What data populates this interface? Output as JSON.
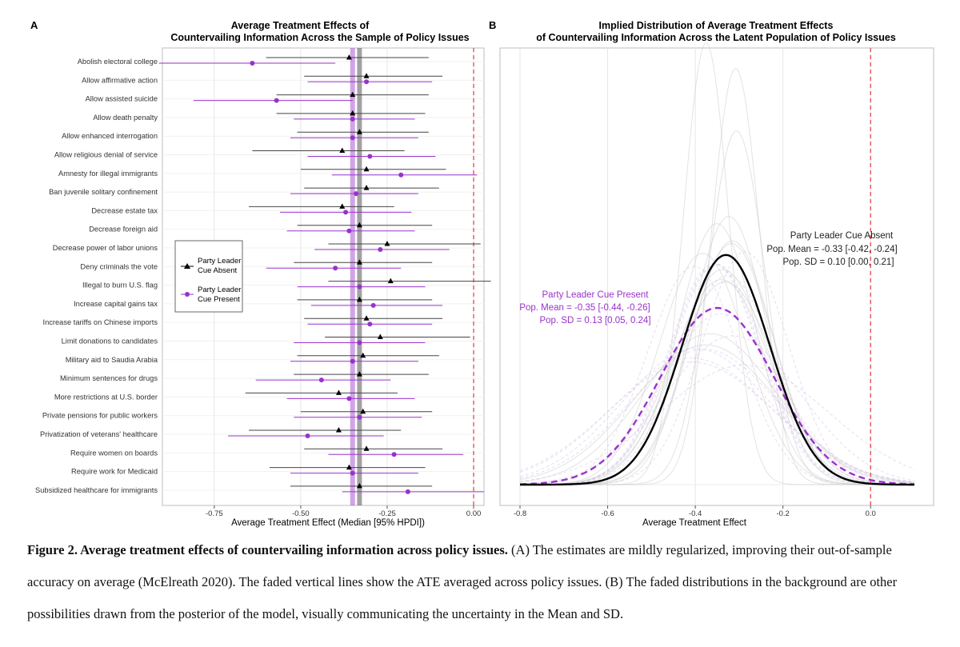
{
  "panel_a": {
    "panel_label": "A",
    "title_line1": "Average Treatment Effects of",
    "title_line2": "Countervailing Information Across the Sample of Policy Issues",
    "xlabel": "Average Treatment Effect (Median [95% HPDI])",
    "legend": {
      "absent_line1": "Party Leader",
      "absent_line2": "Cue Absent",
      "present_line1": "Party Leader",
      "present_line2": "Cue Present"
    }
  },
  "panel_b": {
    "panel_label": "B",
    "title_line1": "Implied Distribution of Average Treatment Effects",
    "title_line2": "of Countervailing Information Across the Latent Population of Policy Issues",
    "xlabel": "Average Treatment Effect",
    "absent_annot": {
      "line1": "Party Leader Cue Absent",
      "line2": "Pop. Mean = -0.33 [-0.42, -0.24]",
      "line3": "Pop. SD = 0.10 [0.00, 0.21]"
    },
    "present_annot": {
      "line1": "Party Leader Cue Present",
      "line2": "Pop. Mean = -0.35 [-0.44, -0.26]",
      "line3": "Pop. SD = 0.13 [0.05, 0.24]"
    }
  },
  "colors": {
    "absent": "#000000",
    "present": "#9932cc",
    "reference": "#e8474a",
    "grid": "#e6e6e6"
  },
  "chart_data": [
    {
      "type": "scatter",
      "subtype": "dot-and-whisker",
      "title": "Average Treatment Effects of Countervailing Information Across the Sample of Policy Issues",
      "xlabel": "Average Treatment Effect (Median [95% HPDI])",
      "xlim": [
        -0.9,
        0.03
      ],
      "x_ticks": [
        -0.75,
        -0.5,
        -0.25,
        0.0
      ],
      "x_tick_labels": [
        "-0.75",
        "-0.50",
        "-0.25",
        "0.00"
      ],
      "reference_line": 0.0,
      "mean_lines": {
        "absent": -0.33,
        "present": -0.35
      },
      "categories": [
        "Abolish electoral college",
        "Allow affirmative action",
        "Allow assisted suicide",
        "Allow death penalty",
        "Allow enhanced interrogation",
        "Allow religious denial of service",
        "Amnesty for illegal immigrants",
        "Ban juvenile solitary confinement",
        "Decrease estate tax",
        "Decrease foreign aid",
        "Decrease power of labor unions",
        "Deny criminals the vote",
        "Illegal to burn U.S. flag",
        "Increase capital gains tax",
        "Increase tariffs on Chinese imports",
        "Limit donations to candidates",
        "Military aid to Saudia Arabia",
        "Minimum sentences for drugs",
        "More restrictions at U.S. border",
        "Private pensions for public workers",
        "Privatization of veterans' healthcare",
        "Require women on boards",
        "Require work for Medicaid",
        "Subsidized healthcare for immigrants"
      ],
      "series": [
        {
          "name": "Party Leader Cue Absent",
          "marker": "triangle",
          "median": [
            -0.36,
            -0.31,
            -0.35,
            -0.35,
            -0.33,
            -0.38,
            -0.31,
            -0.31,
            -0.38,
            -0.33,
            -0.25,
            -0.33,
            -0.24,
            -0.33,
            -0.31,
            -0.27,
            -0.32,
            -0.33,
            -0.39,
            -0.32,
            -0.39,
            -0.31,
            -0.36,
            -0.33
          ],
          "lower": [
            -0.6,
            -0.49,
            -0.57,
            -0.57,
            -0.51,
            -0.64,
            -0.5,
            -0.49,
            -0.65,
            -0.51,
            -0.42,
            -0.52,
            -0.42,
            -0.51,
            -0.49,
            -0.43,
            -0.51,
            -0.52,
            -0.66,
            -0.5,
            -0.65,
            -0.49,
            -0.59,
            -0.53
          ],
          "upper": [
            -0.13,
            -0.09,
            -0.13,
            -0.14,
            -0.13,
            -0.2,
            -0.08,
            -0.1,
            -0.23,
            -0.12,
            0.02,
            -0.12,
            0.05,
            -0.12,
            -0.09,
            -0.01,
            -0.1,
            -0.13,
            -0.22,
            -0.12,
            -0.21,
            -0.09,
            -0.14,
            -0.12
          ]
        },
        {
          "name": "Party Leader Cue Present",
          "marker": "circle",
          "median": [
            -0.64,
            -0.31,
            -0.57,
            -0.35,
            -0.35,
            -0.3,
            -0.21,
            -0.34,
            -0.37,
            -0.36,
            -0.27,
            -0.4,
            -0.33,
            -0.29,
            -0.3,
            -0.33,
            -0.35,
            -0.44,
            -0.36,
            -0.33,
            -0.48,
            -0.23,
            -0.35,
            -0.19
          ],
          "lower": [
            -0.91,
            -0.48,
            -0.81,
            -0.52,
            -0.53,
            -0.48,
            -0.41,
            -0.53,
            -0.56,
            -0.54,
            -0.46,
            -0.6,
            -0.51,
            -0.47,
            -0.48,
            -0.52,
            -0.53,
            -0.63,
            -0.54,
            -0.52,
            -0.71,
            -0.42,
            -0.53,
            -0.38
          ],
          "upper": [
            -0.4,
            -0.12,
            -0.35,
            -0.17,
            -0.16,
            -0.11,
            0.01,
            -0.16,
            -0.18,
            -0.17,
            -0.07,
            -0.21,
            -0.14,
            -0.09,
            -0.12,
            -0.14,
            -0.16,
            -0.24,
            -0.17,
            -0.15,
            -0.26,
            -0.03,
            -0.16,
            0.03
          ]
        }
      ]
    },
    {
      "type": "line",
      "subtype": "density",
      "title": "Implied Distribution of Average Treatment Effects of Countervailing Information Across the Latent Population of Policy Issues",
      "xlabel": "Average Treatment Effect",
      "xlim": [
        -0.8,
        0.1
      ],
      "x_ticks": [
        -0.8,
        -0.6,
        -0.4,
        -0.2,
        0.0
      ],
      "x_tick_labels": [
        "-0.8",
        "-0.6",
        "-0.4",
        "-0.2",
        "0.0"
      ],
      "reference_line": 0.0,
      "series": [
        {
          "name": "Party Leader Cue Absent",
          "line": "solid",
          "mean": -0.33,
          "sd": 0.1
        },
        {
          "name": "Party Leader Cue Present",
          "line": "dashed",
          "mean": -0.35,
          "sd": 0.13
        }
      ]
    }
  ],
  "caption": {
    "lead": "Figure 2. Average treatment effects of countervailing information across policy issues.",
    "body": " (A) The estimates are mildly regularized, improving their out-of-sample accuracy on average (McElreath 2020). The faded vertical lines show the ATE averaged across policy issues. (B) The faded distributions in the background are other possibilities drawn from the posterior of the model, visually communicating the uncertainty in the Mean and SD."
  }
}
